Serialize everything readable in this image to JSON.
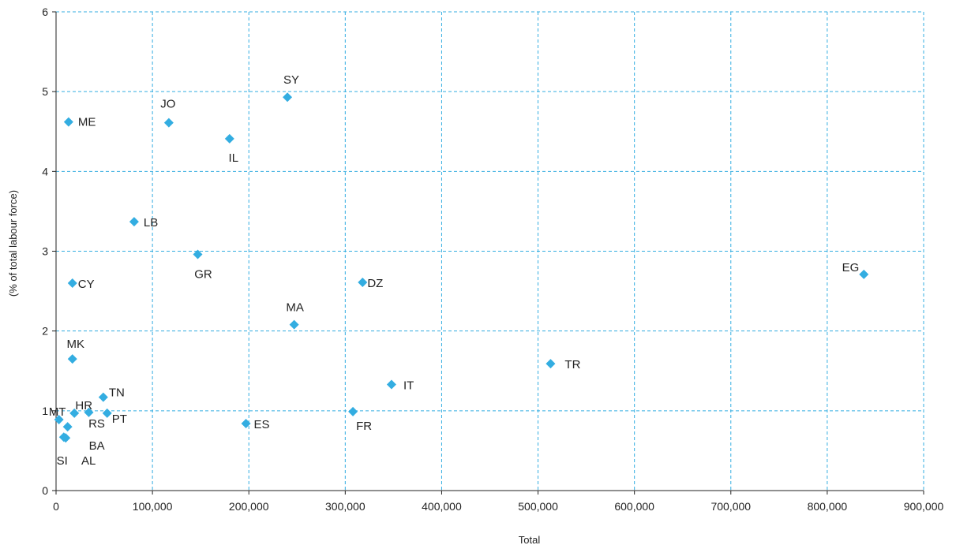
{
  "chart_data": {
    "type": "scatter",
    "title": "",
    "xlabel": "Total",
    "ylabel": "(% of total labour force)",
    "xlim": [
      0,
      900000
    ],
    "ylim": [
      0,
      6
    ],
    "x_ticks": [
      0,
      100000,
      200000,
      300000,
      400000,
      500000,
      600000,
      700000,
      800000,
      900000
    ],
    "x_tick_labels": [
      "0",
      "100,000",
      "200,000",
      "300,000",
      "400,000",
      "500,000",
      "600,000",
      "700,000",
      "800,000",
      "900,000"
    ],
    "y_ticks": [
      0,
      1,
      2,
      3,
      4,
      5,
      6
    ],
    "y_tick_labels": [
      "0",
      "1",
      "2",
      "3",
      "4",
      "5",
      "6"
    ],
    "grid": true,
    "marker_color": "#33ADE1",
    "grid_color": "#33ADE1",
    "points": [
      {
        "label": "SY",
        "x": 240000,
        "y": 4.93
      },
      {
        "label": "JO",
        "x": 117000,
        "y": 4.61
      },
      {
        "label": "ME",
        "x": 13000,
        "y": 4.62
      },
      {
        "label": "IL",
        "x": 180000,
        "y": 4.41
      },
      {
        "label": "LB",
        "x": 81000,
        "y": 3.37
      },
      {
        "label": "GR",
        "x": 147000,
        "y": 2.96
      },
      {
        "label": "CY",
        "x": 17000,
        "y": 2.6
      },
      {
        "label": "DZ",
        "x": 318000,
        "y": 2.61
      },
      {
        "label": "EG",
        "x": 838000,
        "y": 2.71
      },
      {
        "label": "MA",
        "x": 247000,
        "y": 2.08
      },
      {
        "label": "MK",
        "x": 17000,
        "y": 1.65
      },
      {
        "label": "TR",
        "x": 513000,
        "y": 1.59
      },
      {
        "label": "IT",
        "x": 348000,
        "y": 1.33
      },
      {
        "label": "TN",
        "x": 49000,
        "y": 1.17
      },
      {
        "label": "FR",
        "x": 308000,
        "y": 0.99
      },
      {
        "label": "HR",
        "x": 19000,
        "y": 0.97
      },
      {
        "label": "PT",
        "x": 53000,
        "y": 0.97
      },
      {
        "label": "RS",
        "x": 34000,
        "y": 0.98
      },
      {
        "label": "MT",
        "x": 3000,
        "y": 0.89
      },
      {
        "label": "ES",
        "x": 197000,
        "y": 0.84
      },
      {
        "label": "BA",
        "x": 12000,
        "y": 0.8
      },
      {
        "label": "SI",
        "x": 8000,
        "y": 0.67
      },
      {
        "label": "AL",
        "x": 10000,
        "y": 0.66
      }
    ]
  }
}
